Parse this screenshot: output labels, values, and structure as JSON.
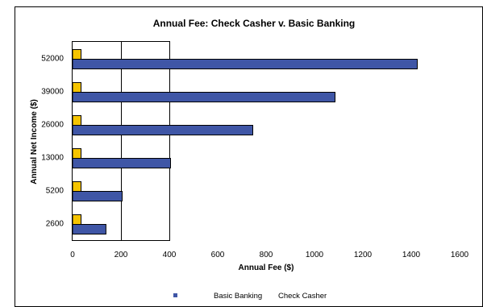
{
  "chart_data": {
    "type": "bar",
    "orientation": "horizontal",
    "title": "Annual Fee: Check Casher v. Basic Banking",
    "xlabel": "Annual Fee ($)",
    "ylabel": "Annual Net Income ($)",
    "categories": [
      "2600",
      "5200",
      "13000",
      "26000",
      "39000",
      "52000"
    ],
    "series": [
      {
        "name": "Basic Banking",
        "color": "#3F56A6",
        "values": [
          138,
          205,
          405,
          745,
          1085,
          1425
        ]
      },
      {
        "name": "Check Casher",
        "color": "#F5C400",
        "values": [
          35,
          35,
          35,
          35,
          35,
          35
        ]
      }
    ],
    "xlim": [
      0,
      1600
    ],
    "xticks": [
      "0",
      "200",
      "400",
      "600",
      "800",
      "1000",
      "1200",
      "1400",
      "1600"
    ],
    "grid": "vertical",
    "legend": {
      "position": "bottom",
      "entries": [
        "Basic Banking",
        "Check Casher"
      ]
    }
  }
}
